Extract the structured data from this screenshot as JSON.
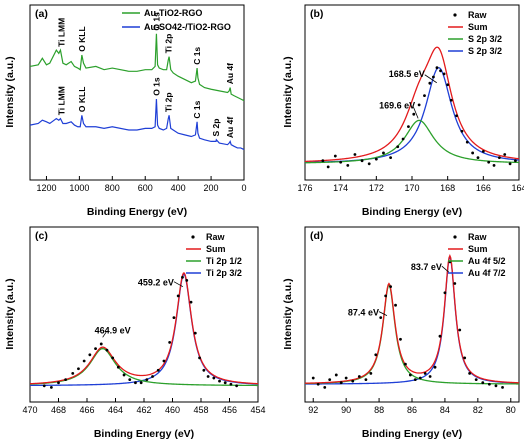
{
  "chart_data": [
    {
      "panel": "(a)",
      "type": "line",
      "xlabel": "Binding Energy (eV)",
      "ylabel": "Intensity (a.u.)",
      "xlim": [
        1300,
        0
      ],
      "xticks": [
        1200,
        1000,
        800,
        600,
        400,
        200,
        0
      ],
      "ylim": [
        0,
        100
      ],
      "legend_position": "top-right",
      "series": [
        {
          "name": "Au-TiO2-RGO",
          "color": "#2ca02c",
          "x": [
            1300,
            1250,
            1225,
            1200,
            1180,
            1140,
            1125,
            1115,
            1100,
            1080,
            1050,
            1030,
            1010,
            995,
            985,
            975,
            960,
            900,
            850,
            800,
            700,
            650,
            600,
            560,
            540,
            532,
            525,
            515,
            490,
            470,
            460,
            455,
            445,
            430,
            400,
            360,
            320,
            295,
            285,
            280,
            270,
            240,
            200,
            150,
            100,
            90,
            84,
            78,
            60,
            40,
            20,
            0
          ],
          "y": [
            66,
            67,
            71,
            67,
            68,
            76,
            74,
            76,
            68,
            67,
            69,
            66,
            65,
            64,
            73,
            68,
            65,
            66,
            64,
            65,
            63,
            63,
            64,
            64,
            66,
            86,
            67,
            65,
            64,
            64,
            70,
            72,
            64,
            62,
            60,
            58,
            56,
            57,
            65,
            59,
            55,
            53,
            52,
            51,
            50,
            51,
            53,
            49,
            48,
            47,
            46,
            45
          ]
        },
        {
          "name": "Au-SO42-/TiO2-RGO",
          "color": "#1f3fd6",
          "x": [
            1300,
            1250,
            1225,
            1200,
            1180,
            1140,
            1125,
            1115,
            1100,
            1080,
            1050,
            1030,
            1010,
            995,
            985,
            975,
            960,
            900,
            850,
            800,
            700,
            650,
            600,
            560,
            540,
            532,
            525,
            515,
            490,
            470,
            460,
            455,
            445,
            430,
            400,
            360,
            320,
            295,
            285,
            280,
            270,
            240,
            200,
            170,
            168,
            150,
            100,
            90,
            84,
            78,
            60,
            40,
            20,
            0
          ],
          "y": [
            30,
            31,
            33,
            32,
            31,
            34,
            33,
            34,
            31,
            31,
            32,
            30,
            29,
            29,
            36,
            31,
            29,
            29,
            28,
            29,
            27,
            27,
            28,
            28,
            29,
            46,
            30,
            28,
            27,
            28,
            34,
            36,
            28,
            27,
            25,
            24,
            23,
            24,
            32,
            25,
            22,
            21,
            20,
            20,
            21,
            19,
            18,
            19,
            20,
            18,
            17,
            16,
            16,
            15
          ]
        }
      ],
      "annotations": [
        {
          "text": "Ti LMM",
          "x": 1110,
          "y": 78
        },
        {
          "text": "O KLL",
          "x": 985,
          "y": 75
        },
        {
          "text": "O 1s",
          "x": 532,
          "y": 88
        },
        {
          "text": "Ti 2p",
          "x": 458,
          "y": 74
        },
        {
          "text": "C 1s",
          "x": 285,
          "y": 67
        },
        {
          "text": "Au 4f",
          "x": 84,
          "y": 55
        },
        {
          "text": "Ti LMM",
          "x": 1110,
          "y": 36
        },
        {
          "text": "O KLL",
          "x": 985,
          "y": 38
        },
        {
          "text": "O 1s",
          "x": 532,
          "y": 48
        },
        {
          "text": "Ti 2p",
          "x": 458,
          "y": 38
        },
        {
          "text": "C 1s",
          "x": 285,
          "y": 34
        },
        {
          "text": "S 2p",
          "x": 170,
          "y": 23
        },
        {
          "text": "Au 4f",
          "x": 84,
          "y": 22
        }
      ]
    },
    {
      "panel": "(b)",
      "type": "line",
      "xlabel": "Binding Energy (eV)",
      "ylabel": "Intensity (a.u.)",
      "xlim": [
        176,
        164
      ],
      "xticks": [
        176,
        174,
        172,
        170,
        168,
        166,
        164
      ],
      "ylim": [
        0,
        100
      ],
      "legend_position": "top-right",
      "legend": [
        {
          "name": "Raw",
          "marker": "dot",
          "color": "#000000"
        },
        {
          "name": "Sum",
          "color": "#e31a1c"
        },
        {
          "name": "S 2p 3/2",
          "color": "#2ca02c"
        },
        {
          "name": "S 2p 3/2",
          "color": "#1f3fd6"
        }
      ],
      "peaks": [
        {
          "center": 168.5,
          "height": 62,
          "width": 0.9,
          "color": "#1f3fd6"
        },
        {
          "center": 169.6,
          "height": 28,
          "width": 1.0,
          "color": "#2ca02c"
        }
      ],
      "baseline": 4,
      "raw": {
        "x": [
          175.0,
          174.7,
          174.3,
          174.0,
          173.6,
          173.2,
          172.8,
          172.4,
          172.0,
          171.6,
          171.2,
          170.8,
          170.5,
          170.2,
          169.9,
          169.6,
          169.3,
          169.0,
          168.8,
          168.6,
          168.4,
          168.2,
          168.0,
          167.8,
          167.5,
          167.2,
          166.9,
          166.6,
          166.3,
          166.0,
          165.7,
          165.4,
          165.1,
          164.8,
          164.5,
          164.2
        ],
        "y": [
          6,
          2,
          9,
          5,
          3,
          10,
          6,
          4,
          7,
          11,
          8,
          15,
          20,
          28,
          36,
          42,
          48,
          56,
          60,
          66,
          64,
          62,
          55,
          45,
          35,
          25,
          18,
          11,
          8,
          12,
          5,
          3,
          8,
          10,
          4,
          6
        ]
      },
      "annotations": [
        {
          "text": "168.5 eV",
          "x": 168.5,
          "y": 55
        },
        {
          "text": "169.6 eV",
          "x": 169.6,
          "y": 32
        }
      ]
    },
    {
      "panel": "(c)",
      "type": "line",
      "xlabel": "Binding Energy (eV)",
      "ylabel": "Intensity (a.u.)",
      "xlim": [
        470,
        454
      ],
      "xticks": [
        470,
        468,
        466,
        464,
        462,
        460,
        458,
        456,
        454
      ],
      "ylim": [
        0,
        100
      ],
      "legend_position": "top-right",
      "legend": [
        {
          "name": "Raw",
          "marker": "dot",
          "color": "#000000"
        },
        {
          "name": "Sum",
          "color": "#e31a1c"
        },
        {
          "name": "Ti 2p 1/2",
          "color": "#2ca02c"
        },
        {
          "name": "Ti 2p 3/2",
          "color": "#1f3fd6"
        }
      ],
      "peaks": [
        {
          "center": 459.2,
          "height": 72,
          "width": 0.65,
          "color": "#1f3fd6"
        },
        {
          "center": 464.9,
          "height": 24,
          "width": 1.1,
          "color": "#2ca02c"
        }
      ],
      "baseline": 4,
      "raw": {
        "x": [
          469.0,
          468.5,
          468.0,
          467.5,
          467.0,
          466.6,
          466.2,
          465.8,
          465.4,
          465.0,
          464.6,
          464.2,
          463.8,
          463.4,
          463.0,
          462.6,
          462.2,
          461.8,
          461.4,
          461.0,
          460.6,
          460.2,
          459.9,
          459.6,
          459.3,
          459.0,
          458.7,
          458.4,
          458.1,
          457.8,
          457.5,
          457.1,
          456.7,
          456.3,
          455.9,
          455.5
        ],
        "y": [
          4,
          3,
          6,
          8,
          12,
          15,
          20,
          24,
          28,
          31,
          27,
          22,
          16,
          11,
          8,
          6,
          6,
          8,
          10,
          14,
          20,
          32,
          48,
          62,
          74,
          72,
          58,
          38,
          22,
          14,
          10,
          9,
          7,
          6,
          5,
          4
        ]
      },
      "annotations": [
        {
          "text": "459.2 eV",
          "x": 459.2,
          "y": 66
        },
        {
          "text": "464.9 eV",
          "x": 464.9,
          "y": 34
        }
      ]
    },
    {
      "panel": "(d)",
      "type": "line",
      "xlabel": "Binding Energy (eV)",
      "ylabel": "Intensity (a.u.)",
      "xlim": [
        92.5,
        79.5
      ],
      "xticks": [
        92,
        90,
        88,
        86,
        84,
        82,
        80
      ],
      "ylim": [
        0,
        100
      ],
      "legend_position": "top-right",
      "legend": [
        {
          "name": "Raw",
          "marker": "dot",
          "color": "#000000"
        },
        {
          "name": "Sum",
          "color": "#e31a1c"
        },
        {
          "name": "Au 4f 5/2",
          "color": "#2ca02c"
        },
        {
          "name": "Au 4f 7/2",
          "color": "#1f3fd6"
        }
      ],
      "peaks": [
        {
          "center": 83.7,
          "height": 82,
          "width": 0.4,
          "color": "#1f3fd6"
        },
        {
          "center": 87.4,
          "height": 64,
          "width": 0.45,
          "color": "#2ca02c"
        }
      ],
      "baseline": 5,
      "raw": {
        "x": [
          92.0,
          91.7,
          91.3,
          91.0,
          90.6,
          90.3,
          90.0,
          89.6,
          89.2,
          88.8,
          88.5,
          88.2,
          87.9,
          87.6,
          87.3,
          87.0,
          86.7,
          86.4,
          86.1,
          85.8,
          85.5,
          85.2,
          84.9,
          84.6,
          84.3,
          84.0,
          83.7,
          83.4,
          83.1,
          82.8,
          82.5,
          82.1,
          81.7,
          81.3,
          80.9,
          80.5
        ],
        "y": [
          9,
          5,
          3,
          8,
          11,
          6,
          9,
          7,
          10,
          8,
          12,
          24,
          48,
          62,
          68,
          56,
          34,
          18,
          11,
          8,
          9,
          12,
          10,
          16,
          36,
          64,
          84,
          70,
          40,
          22,
          12,
          8,
          6,
          5,
          4,
          3
        ]
      },
      "annotations": [
        {
          "text": "83.7 eV",
          "x": 83.7,
          "y": 76
        },
        {
          "text": "87.4 eV",
          "x": 87.4,
          "y": 48
        }
      ]
    }
  ]
}
